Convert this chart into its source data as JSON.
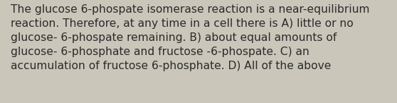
{
  "text": "The glucose 6-phospate isomerase reaction is a near-equilibrium\nreaction. Therefore, at any time in a cell there is A) little or no\nglucose- 6-phospate remaining. B) about equal amounts of\nglucose- 6-phosphate and fructose -6-phospate. C) an\naccumulation of fructose 6-phosphate. D) All of the above",
  "background_color": "#cac6ba",
  "text_color": "#2b2b2b",
  "font_size": 11.2,
  "figsize": [
    5.58,
    1.46
  ],
  "dpi": 100
}
